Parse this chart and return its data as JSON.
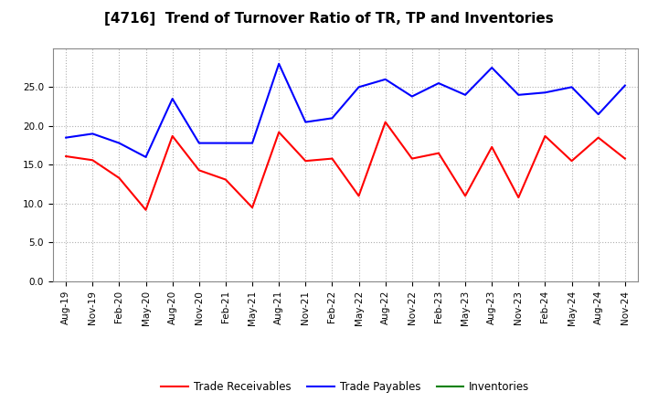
{
  "title": "[4716]  Trend of Turnover Ratio of TR, TP and Inventories",
  "labels": [
    "Aug-19",
    "Nov-19",
    "Feb-20",
    "May-20",
    "Aug-20",
    "Nov-20",
    "Feb-21",
    "May-21",
    "Aug-21",
    "Nov-21",
    "Feb-22",
    "May-22",
    "Aug-22",
    "Nov-22",
    "Feb-23",
    "May-23",
    "Aug-23",
    "Nov-23",
    "Feb-24",
    "May-24",
    "Aug-24",
    "Nov-24"
  ],
  "trade_receivables": [
    16.1,
    15.6,
    13.3,
    9.2,
    18.7,
    14.3,
    13.1,
    9.5,
    19.2,
    15.5,
    15.8,
    11.0,
    20.5,
    15.8,
    16.5,
    11.0,
    17.3,
    10.8,
    18.7,
    15.5,
    18.5,
    15.8
  ],
  "trade_payables": [
    18.5,
    19.0,
    17.8,
    16.0,
    23.5,
    17.8,
    17.8,
    17.8,
    28.0,
    20.5,
    21.0,
    25.0,
    26.0,
    23.8,
    25.5,
    24.0,
    27.5,
    24.0,
    24.3,
    25.0,
    21.5,
    25.2
  ],
  "ylim": [
    0,
    30
  ],
  "yticks": [
    0.0,
    5.0,
    10.0,
    15.0,
    20.0,
    25.0
  ],
  "line_color_tr": "#ff0000",
  "line_color_tp": "#0000ff",
  "line_color_inv": "#008000",
  "background_color": "#ffffff",
  "grid_color": "#b0b0b0",
  "title_fontsize": 11,
  "tick_fontsize": 7.5,
  "legend_fontsize": 8.5
}
